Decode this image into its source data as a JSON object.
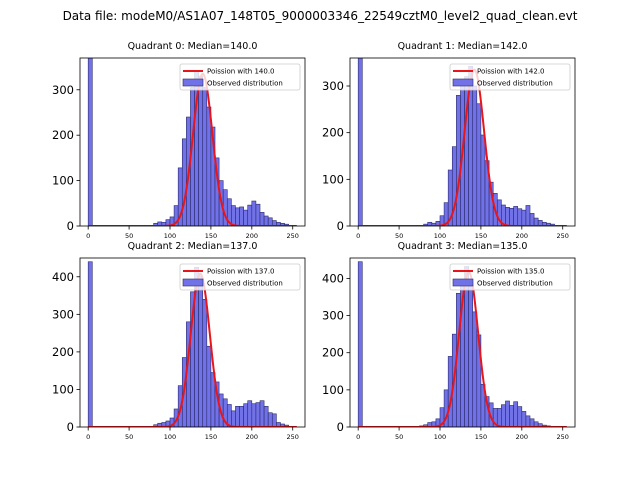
{
  "figure_title": "Data file: modeM0/AS1A07_148T05_9000003346_22549cztM0_level2_quad_clean.evt",
  "chart_data": [
    {
      "type": "bar",
      "title": "Quadrant 0: Median=140.0",
      "bin_width": 5,
      "bins": [
        [
          0,
          370
        ],
        [
          80,
          6
        ],
        [
          85,
          9
        ],
        [
          90,
          8
        ],
        [
          95,
          14
        ],
        [
          100,
          20
        ],
        [
          105,
          45
        ],
        [
          110,
          128
        ],
        [
          115,
          192
        ],
        [
          120,
          240
        ],
        [
          125,
          305
        ],
        [
          130,
          340
        ],
        [
          135,
          330
        ],
        [
          140,
          305
        ],
        [
          145,
          262
        ],
        [
          150,
          218
        ],
        [
          155,
          150
        ],
        [
          160,
          100
        ],
        [
          165,
          80
        ],
        [
          170,
          60
        ],
        [
          175,
          45
        ],
        [
          180,
          40
        ],
        [
          185,
          42
        ],
        [
          190,
          35
        ],
        [
          195,
          46
        ],
        [
          200,
          55
        ],
        [
          205,
          48
        ],
        [
          210,
          30
        ],
        [
          215,
          22
        ],
        [
          220,
          18
        ],
        [
          225,
          12
        ],
        [
          230,
          8
        ],
        [
          235,
          6
        ],
        [
          240,
          4
        ]
      ],
      "poisson_mean": 140.0,
      "poisson_peak": 335,
      "xlim": [
        -10,
        265
      ],
      "ylim": [
        0,
        370
      ],
      "xticks": [
        0,
        50,
        100,
        150,
        200,
        250
      ],
      "yticks": [
        0,
        100,
        200,
        300
      ],
      "legend": [
        "Poission with 140.0",
        "Observed distribution"
      ]
    },
    {
      "type": "bar",
      "title": "Quadrant 1: Median=142.0",
      "bin_width": 5,
      "bins": [
        [
          0,
          360
        ],
        [
          80,
          4
        ],
        [
          85,
          8
        ],
        [
          90,
          6
        ],
        [
          95,
          10
        ],
        [
          100,
          22
        ],
        [
          105,
          50
        ],
        [
          110,
          120
        ],
        [
          115,
          170
        ],
        [
          120,
          280
        ],
        [
          125,
          300
        ],
        [
          130,
          320
        ],
        [
          135,
          342
        ],
        [
          140,
          300
        ],
        [
          145,
          262
        ],
        [
          150,
          195
        ],
        [
          155,
          140
        ],
        [
          160,
          94
        ],
        [
          165,
          70
        ],
        [
          170,
          56
        ],
        [
          175,
          45
        ],
        [
          180,
          40
        ],
        [
          185,
          38
        ],
        [
          190,
          42
        ],
        [
          195,
          37
        ],
        [
          200,
          34
        ],
        [
          205,
          44
        ],
        [
          210,
          27
        ],
        [
          215,
          17
        ],
        [
          220,
          12
        ],
        [
          225,
          8
        ],
        [
          230,
          6
        ],
        [
          235,
          4
        ]
      ],
      "poisson_mean": 142.0,
      "poisson_peak": 335,
      "xlim": [
        -10,
        265
      ],
      "ylim": [
        0,
        360
      ],
      "xticks": [
        0,
        50,
        100,
        150,
        200,
        250
      ],
      "yticks": [
        0,
        100,
        200,
        300
      ],
      "legend": [
        "Poission with 142.0",
        "Observed distribution"
      ]
    },
    {
      "type": "bar",
      "title": "Quadrant 2: Median=137.0",
      "bin_width": 5,
      "bins": [
        [
          0,
          440
        ],
        [
          80,
          6
        ],
        [
          85,
          10
        ],
        [
          90,
          12
        ],
        [
          95,
          16
        ],
        [
          100,
          24
        ],
        [
          105,
          48
        ],
        [
          110,
          110
        ],
        [
          115,
          185
        ],
        [
          120,
          280
        ],
        [
          125,
          360
        ],
        [
          130,
          425
        ],
        [
          135,
          402
        ],
        [
          140,
          340
        ],
        [
          145,
          215
        ],
        [
          150,
          145
        ],
        [
          155,
          120
        ],
        [
          160,
          88
        ],
        [
          165,
          75
        ],
        [
          170,
          60
        ],
        [
          175,
          43
        ],
        [
          180,
          55
        ],
        [
          185,
          55
        ],
        [
          190,
          62
        ],
        [
          195,
          70
        ],
        [
          200,
          62
        ],
        [
          205,
          65
        ],
        [
          210,
          70
        ],
        [
          215,
          55
        ],
        [
          220,
          38
        ],
        [
          225,
          35
        ],
        [
          230,
          12
        ],
        [
          235,
          8
        ],
        [
          240,
          5
        ]
      ],
      "poisson_mean": 137.0,
      "poisson_peak": 408,
      "xlim": [
        -10,
        265
      ],
      "ylim": [
        0,
        450
      ],
      "xticks": [
        0,
        50,
        100,
        150,
        200,
        250
      ],
      "yticks": [
        0,
        100,
        200,
        300,
        400
      ],
      "legend": [
        "Poission with 137.0",
        "Observed distribution"
      ]
    },
    {
      "type": "bar",
      "title": "Quadrant 3: Median=135.0",
      "bin_width": 5,
      "bins": [
        [
          0,
          445
        ],
        [
          75,
          3
        ],
        [
          80,
          6
        ],
        [
          85,
          12
        ],
        [
          90,
          14
        ],
        [
          95,
          22
        ],
        [
          100,
          52
        ],
        [
          105,
          100
        ],
        [
          110,
          190
        ],
        [
          115,
          250
        ],
        [
          120,
          360
        ],
        [
          125,
          380
        ],
        [
          130,
          432
        ],
        [
          135,
          380
        ],
        [
          140,
          310
        ],
        [
          145,
          248
        ],
        [
          150,
          115
        ],
        [
          155,
          82
        ],
        [
          160,
          65
        ],
        [
          165,
          50
        ],
        [
          170,
          50
        ],
        [
          175,
          60
        ],
        [
          180,
          70
        ],
        [
          185,
          58
        ],
        [
          190,
          68
        ],
        [
          195,
          55
        ],
        [
          200,
          42
        ],
        [
          205,
          30
        ],
        [
          210,
          22
        ],
        [
          215,
          14
        ],
        [
          220,
          9
        ],
        [
          225,
          5
        ],
        [
          230,
          3
        ]
      ],
      "poisson_mean": 135.0,
      "poisson_peak": 418,
      "xlim": [
        -10,
        265
      ],
      "ylim": [
        0,
        455
      ],
      "xticks": [
        0,
        50,
        100,
        150,
        200,
        250
      ],
      "yticks": [
        0,
        100,
        200,
        300,
        400
      ],
      "legend": [
        "Poission with 135.0",
        "Observed distribution"
      ]
    }
  ],
  "colors": {
    "bar_fill": "#7272e8",
    "bar_edge": "#2a2a6a",
    "poisson_line": "#e8161b"
  }
}
